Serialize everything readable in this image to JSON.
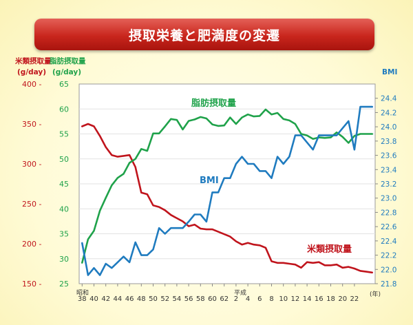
{
  "title": "摂取栄養と肥満度の変遷",
  "chart_data": {
    "type": "line",
    "axes": {
      "left_outer": {
        "label": "米類摂取量",
        "unit": "(g/day)",
        "range": [
          150,
          400
        ],
        "ticks": [
          "400 -",
          "350 -",
          "300 -",
          "250 -",
          "200 -",
          "150 -"
        ],
        "tick_values": [
          400,
          350,
          300,
          250,
          200,
          150
        ],
        "color": "#c0141c"
      },
      "left_inner": {
        "label": "脂肪摂取量",
        "unit": "(g/day)",
        "range": [
          25,
          65
        ],
        "ticks": [
          "65",
          "60",
          "55",
          "50",
          "45",
          "40",
          "35",
          "30",
          "25"
        ],
        "tick_values": [
          65,
          60,
          55,
          50,
          45,
          40,
          35,
          30,
          25
        ],
        "color": "#1fa24a"
      },
      "right": {
        "label": "BMI",
        "range": [
          21.8,
          24.6
        ],
        "ticks": [
          "24.4",
          "24.2",
          "24.0",
          "23.8",
          "23.6",
          "23.4",
          "23.2",
          "23.0",
          "22.8",
          "22.6",
          "22.4",
          "22.2",
          "22.0",
          "21.8"
        ],
        "tick_values": [
          24.4,
          24.2,
          24.0,
          23.8,
          23.6,
          23.4,
          23.2,
          23.0,
          22.8,
          22.6,
          22.4,
          22.2,
          22.0,
          21.8
        ],
        "color": "#1f7bbf"
      },
      "x": {
        "era_showa": "昭和",
        "era_heisei": "平成",
        "unit": "(年)",
        "ticks": [
          "38",
          "40",
          "42",
          "44",
          "46",
          "48",
          "50",
          "52",
          "54",
          "56",
          "58",
          "60",
          "62",
          "2",
          "4",
          "6",
          "8",
          "10",
          "12",
          "14",
          "16",
          "18",
          "20",
          "22"
        ]
      }
    },
    "series": [
      {
        "name": "米類摂取量",
        "axis": "left_outer",
        "color": "#c0141c",
        "x": [
          1963,
          1964,
          1965,
          1966,
          1967,
          1968,
          1969,
          1970,
          1971,
          1972,
          1973,
          1974,
          1975,
          1976,
          1977,
          1978,
          1979,
          1980,
          1981,
          1982,
          1983,
          1984,
          1985,
          1986,
          1987,
          1988,
          1989,
          1990,
          1991,
          1992,
          1993,
          1994,
          1995,
          1996,
          1997,
          1998,
          1999,
          2000,
          2001,
          2002,
          2003,
          2004,
          2005,
          2006,
          2007,
          2008,
          2009,
          2010,
          2011,
          2012
        ],
        "values": [
          347,
          350,
          347,
          335,
          321,
          311,
          309,
          310,
          311,
          296,
          264,
          262,
          248,
          246,
          242,
          236,
          232,
          228,
          222,
          224,
          219,
          218,
          218,
          215,
          212,
          209,
          203,
          199,
          201,
          199,
          198,
          195,
          178,
          176,
          176,
          175,
          174,
          170,
          177,
          176,
          177,
          173,
          173,
          174,
          170,
          171,
          169,
          166,
          165,
          164
        ]
      },
      {
        "name": "脂肪摂取量",
        "axis": "left_inner",
        "color": "#1fa24a",
        "x": [
          1963,
          1964,
          1965,
          1966,
          1967,
          1968,
          1969,
          1970,
          1971,
          1972,
          1973,
          1974,
          1975,
          1976,
          1977,
          1978,
          1979,
          1980,
          1981,
          1982,
          1983,
          1984,
          1985,
          1986,
          1987,
          1988,
          1989,
          1990,
          1991,
          1992,
          1993,
          1994,
          1995,
          1996,
          1997,
          1998,
          1999,
          2000,
          2001,
          2002,
          2003,
          2004,
          2005,
          2006,
          2007,
          2008,
          2009,
          2010,
          2011,
          2012
        ],
        "values": [
          29.2,
          33.9,
          35.6,
          39.6,
          42.2,
          44.7,
          46.2,
          47.0,
          49.2,
          50.0,
          52.0,
          51.6,
          55.1,
          55.1,
          56.5,
          58.0,
          57.8,
          55.9,
          57.6,
          57.9,
          58.4,
          58.1,
          56.9,
          56.6,
          56.7,
          58.3,
          57.0,
          58.3,
          58.9,
          58.5,
          58.6,
          59.9,
          58.9,
          59.2,
          58.0,
          57.7,
          57.0,
          55.0,
          54.7,
          54.0,
          54.3,
          54.2,
          54.3,
          55.3,
          54.4,
          53.2,
          54.6,
          55.0,
          55.0,
          55.0
        ]
      },
      {
        "name": "BMI",
        "axis": "right",
        "color": "#1f7bbf",
        "x": [
          1963,
          1964,
          1965,
          1966,
          1967,
          1968,
          1969,
          1970,
          1971,
          1972,
          1973,
          1974,
          1975,
          1976,
          1977,
          1978,
          1979,
          1980,
          1981,
          1982,
          1983,
          1984,
          1985,
          1986,
          1987,
          1988,
          1989,
          1990,
          1991,
          1992,
          1993,
          1994,
          1995,
          1996,
          1997,
          1998,
          1999,
          2000,
          2001,
          2002,
          2003,
          2004,
          2005,
          2006,
          2007,
          2008,
          2009,
          2010,
          2011,
          2012
        ],
        "values": [
          22.37,
          21.92,
          22.02,
          21.92,
          22.08,
          22.02,
          22.1,
          22.18,
          22.1,
          22.38,
          22.2,
          22.2,
          22.28,
          22.58,
          22.5,
          22.58,
          22.58,
          22.58,
          22.67,
          22.77,
          22.77,
          22.67,
          23.08,
          23.08,
          23.28,
          23.28,
          23.48,
          23.58,
          23.48,
          23.48,
          23.38,
          23.38,
          23.28,
          23.58,
          23.48,
          23.58,
          23.88,
          23.88,
          23.78,
          23.68,
          23.88,
          23.88,
          23.88,
          23.88,
          23.98,
          24.08,
          23.68,
          24.28,
          24.28,
          24.28
        ]
      }
    ],
    "annotations": [
      {
        "text": "脂肪摂取量",
        "series": "脂肪摂取量"
      },
      {
        "text": "BMI",
        "series": "BMI"
      },
      {
        "text": "米類摂取量",
        "series": "米類摂取量"
      }
    ]
  }
}
